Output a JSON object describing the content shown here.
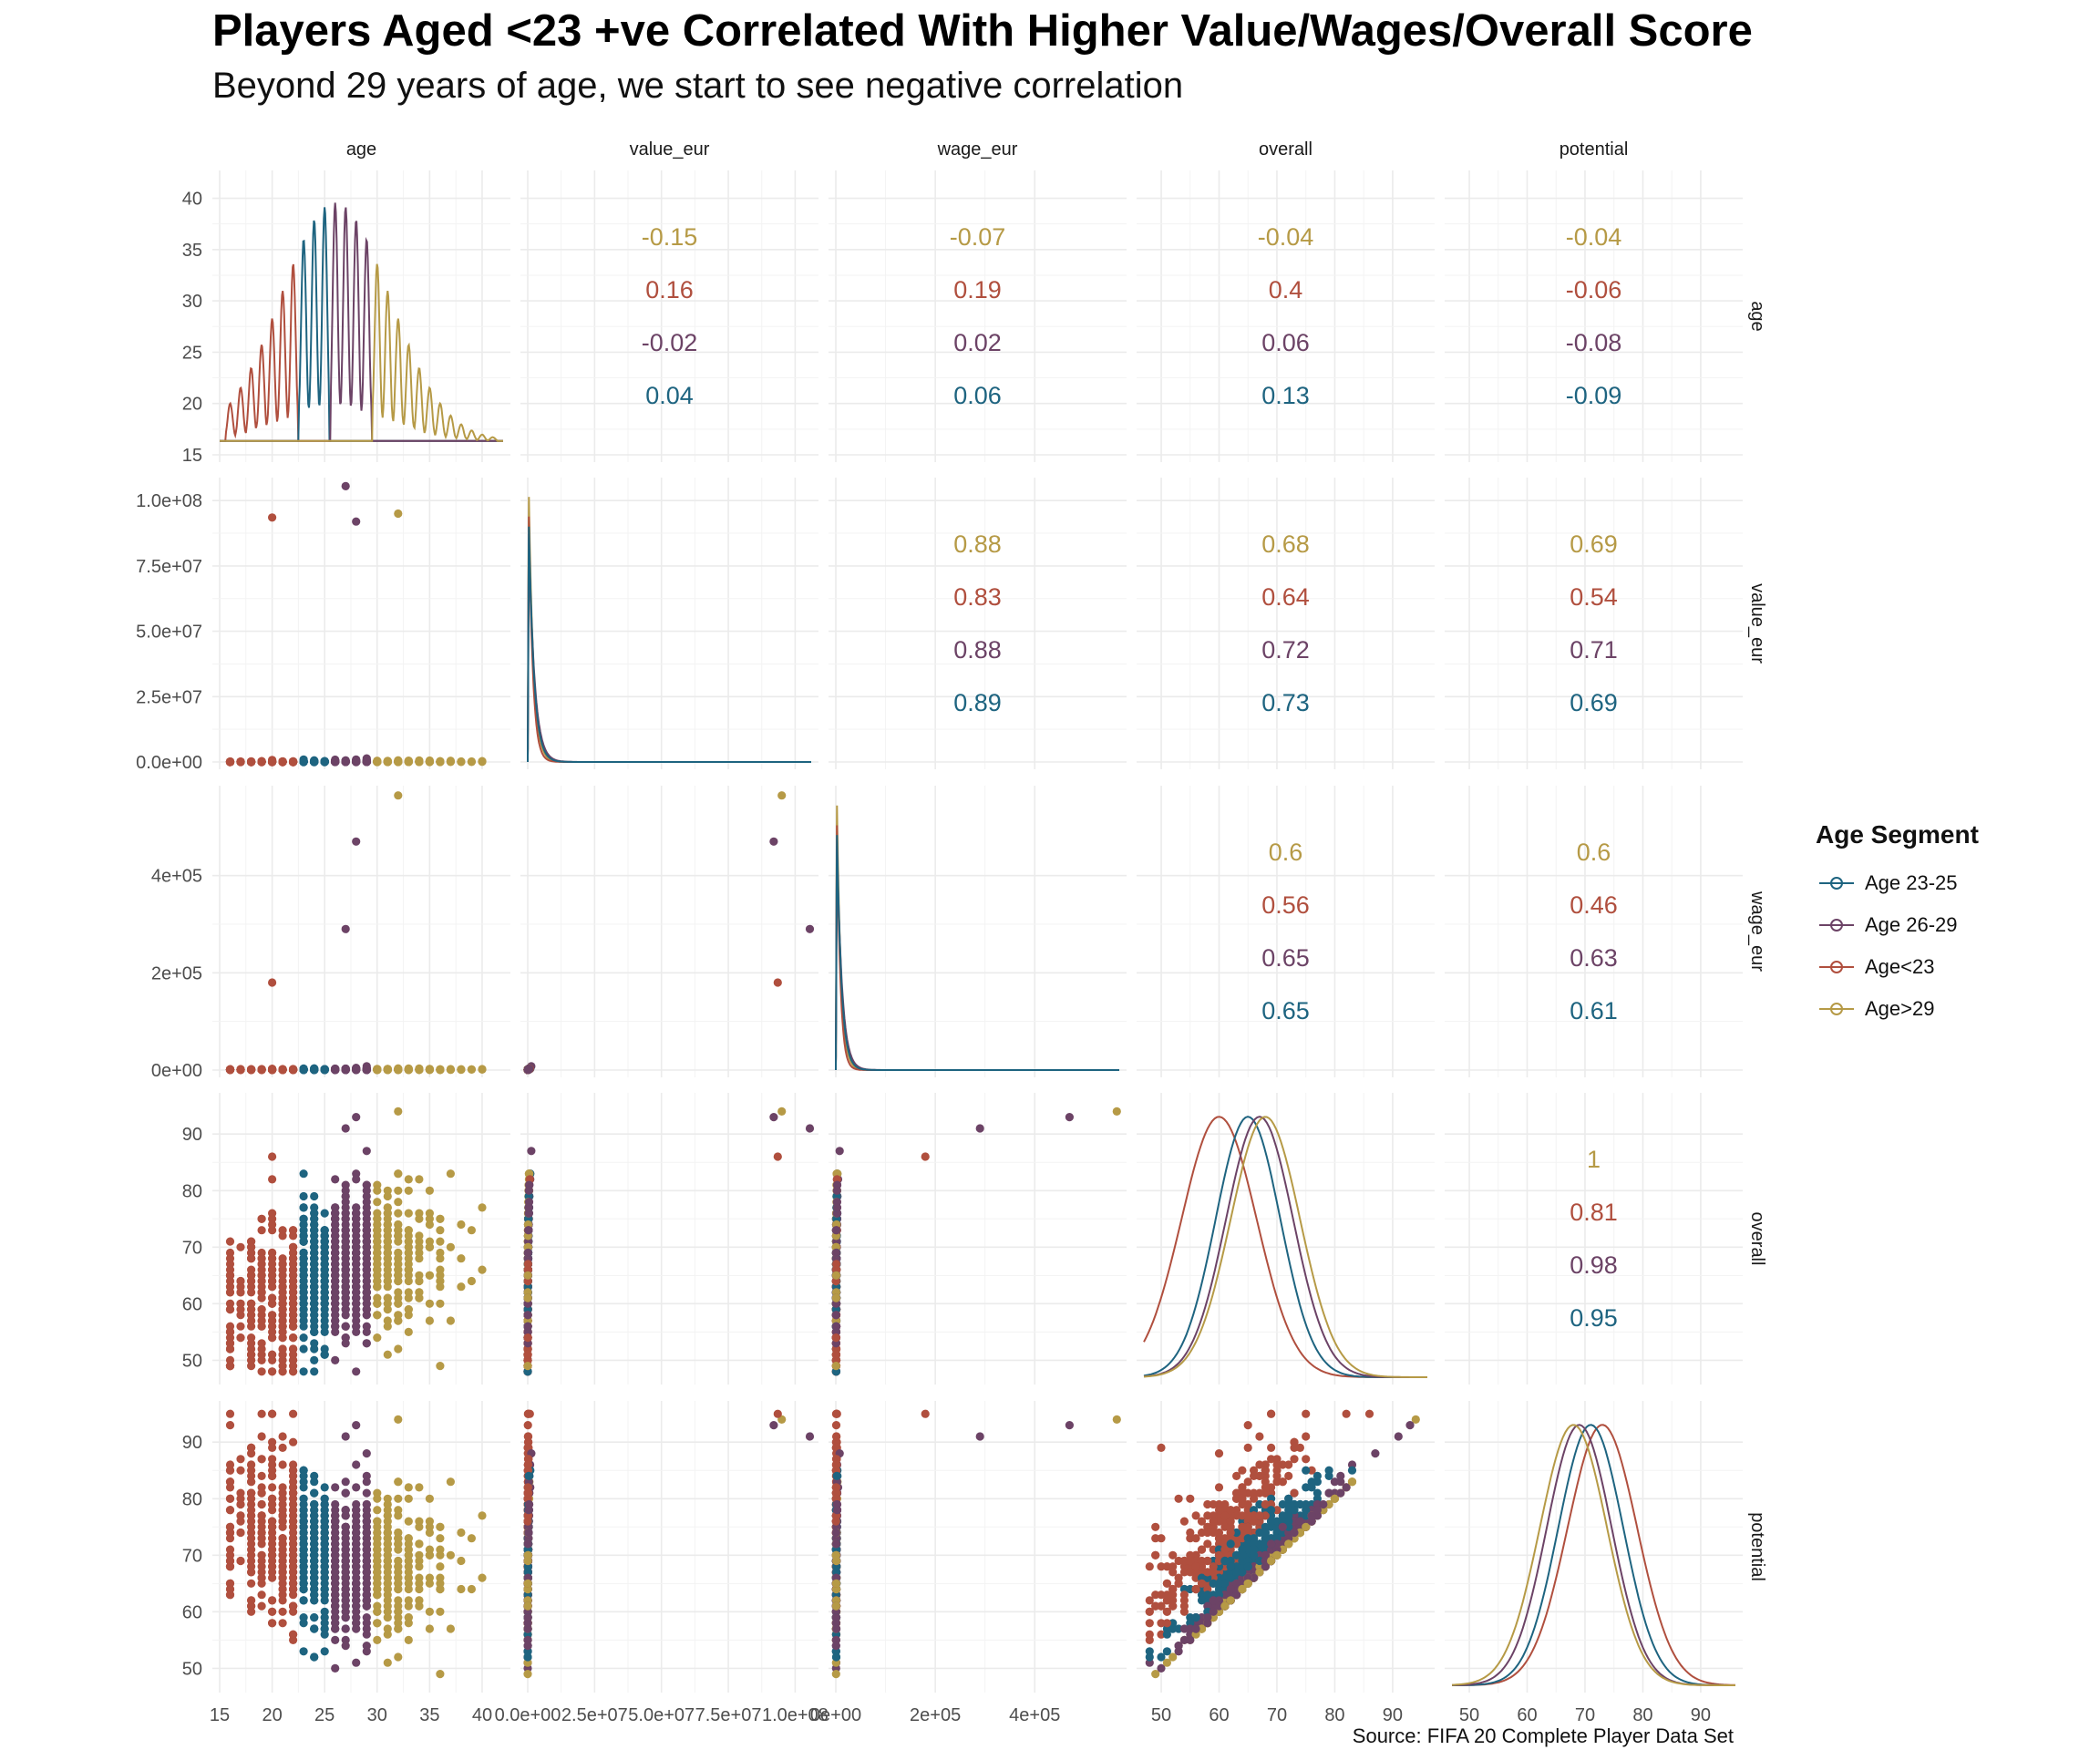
{
  "title": "Players Aged <23 +ve Correlated With Higher Value/Wages/Overall Score",
  "subtitle": "Beyond 29 years of age, we start to see negative correlation",
  "caption": "Source: FIFA 20 Complete Player Data Set",
  "legend": {
    "title": "Age Segment",
    "items": [
      {
        "label": "Age 23-25",
        "color": "#1e6480"
      },
      {
        "label": "Age 26-29",
        "color": "#6c4366"
      },
      {
        "label": "Age<23",
        "color": "#b04f3e"
      },
      {
        "label": "Age>29",
        "color": "#b69a46"
      }
    ]
  },
  "chart_data": {
    "type": "scatter",
    "variables": [
      "age",
      "value_eur",
      "wage_eur",
      "overall",
      "potential"
    ],
    "panel_layout": "pairs-matrix: density on diagonal, scatter lower triangle, correlations upper triangle",
    "segment_order_in_correlation_text": [
      "Age>29",
      "Age<23",
      "Age 26-29",
      "Age 23-25"
    ],
    "segments": {
      "Age<23": {
        "color": "#b04f3e",
        "age_range": [
          16,
          22
        ]
      },
      "Age 23-25": {
        "color": "#1e6480",
        "age_range": [
          23,
          25
        ]
      },
      "Age 26-29": {
        "color": "#6c4366",
        "age_range": [
          26,
          29
        ]
      },
      "Age>29": {
        "color": "#b69a46",
        "age_range": [
          30,
          42
        ]
      }
    },
    "axes": {
      "age": {
        "range": [
          15,
          42
        ],
        "ticks": [
          15,
          20,
          25,
          30,
          35,
          40
        ],
        "tick_labels": [
          "15",
          "20",
          "25",
          "30",
          "35",
          "40"
        ]
      },
      "value_eur": {
        "range": [
          0,
          106000000
        ],
        "ticks": [
          0,
          25000000,
          50000000,
          75000000,
          100000000
        ],
        "tick_labels": [
          "0.0e+00",
          "2.5e+07",
          "5.0e+07",
          "7.5e+07",
          "1.0e+08"
        ]
      },
      "wage_eur": {
        "range": [
          0,
          570000
        ],
        "ticks": [
          0,
          200000,
          400000
        ],
        "tick_labels": [
          "0e+00",
          "2e+05",
          "4e+05"
        ]
      },
      "overall": {
        "range": [
          47,
          96
        ],
        "ticks": [
          50,
          60,
          70,
          80,
          90
        ],
        "tick_labels": [
          "50",
          "60",
          "70",
          "80",
          "90"
        ]
      },
      "potential": {
        "range": [
          47,
          96
        ],
        "ticks": [
          50,
          60,
          70,
          80,
          90
        ],
        "tick_labels": [
          "50",
          "60",
          "70",
          "80",
          "90"
        ]
      }
    },
    "correlations": [
      {
        "row": "age",
        "col": "value_eur",
        "values": {
          "Age>29": "-0.15",
          "Age<23": "0.16",
          "Age 26-29": "-0.02",
          "Age 23-25": "0.04"
        }
      },
      {
        "row": "age",
        "col": "wage_eur",
        "values": {
          "Age>29": "-0.07",
          "Age<23": "0.19",
          "Age 26-29": "0.02",
          "Age 23-25": "0.06"
        }
      },
      {
        "row": "age",
        "col": "overall",
        "values": {
          "Age>29": "-0.04",
          "Age<23": "0.4",
          "Age 26-29": "0.06",
          "Age 23-25": "0.13"
        }
      },
      {
        "row": "age",
        "col": "potential",
        "values": {
          "Age>29": "-0.04",
          "Age<23": "-0.06",
          "Age 26-29": "-0.08",
          "Age 23-25": "-0.09"
        }
      },
      {
        "row": "value_eur",
        "col": "wage_eur",
        "values": {
          "Age>29": "0.88",
          "Age<23": "0.83",
          "Age 26-29": "0.88",
          "Age 23-25": "0.89"
        }
      },
      {
        "row": "value_eur",
        "col": "overall",
        "values": {
          "Age>29": "0.68",
          "Age<23": "0.64",
          "Age 26-29": "0.72",
          "Age 23-25": "0.73"
        }
      },
      {
        "row": "value_eur",
        "col": "potential",
        "values": {
          "Age>29": "0.69",
          "Age<23": "0.54",
          "Age 26-29": "0.71",
          "Age 23-25": "0.69"
        }
      },
      {
        "row": "wage_eur",
        "col": "overall",
        "values": {
          "Age>29": "0.6",
          "Age<23": "0.56",
          "Age 26-29": "0.65",
          "Age 23-25": "0.65"
        }
      },
      {
        "row": "wage_eur",
        "col": "potential",
        "values": {
          "Age>29": "0.6",
          "Age<23": "0.46",
          "Age 26-29": "0.63",
          "Age 23-25": "0.61"
        }
      },
      {
        "row": "overall",
        "col": "potential",
        "values": {
          "Age>29": "1",
          "Age<23": "0.81",
          "Age 26-29": "0.98",
          "Age 23-25": "0.95"
        }
      }
    ],
    "marginal_densities": {
      "overall": {
        "Age<23": {
          "peak": 60
        },
        "Age 23-25": {
          "peak": 65
        },
        "Age 26-29": {
          "peak": 67
        },
        "Age>29": {
          "peak": 68
        }
      },
      "potential": {
        "Age<23": {
          "peak": 73
        },
        "Age 23-25": {
          "peak": 71
        },
        "Age 26-29": {
          "peak": 69
        },
        "Age>29": {
          "peak": 68
        }
      }
    },
    "scatter_extremes": {
      "max_value_eur": {
        "age": 27,
        "value_eur": 105500000,
        "segment": "Age 26-29"
      },
      "max_wage_eur": {
        "age": 32,
        "wage_eur": 565000,
        "segment": "Age>29"
      },
      "max_overall": {
        "age": 32,
        "overall": 94,
        "segment": "Age>29"
      }
    },
    "grid": true,
    "legend_position": "right"
  }
}
